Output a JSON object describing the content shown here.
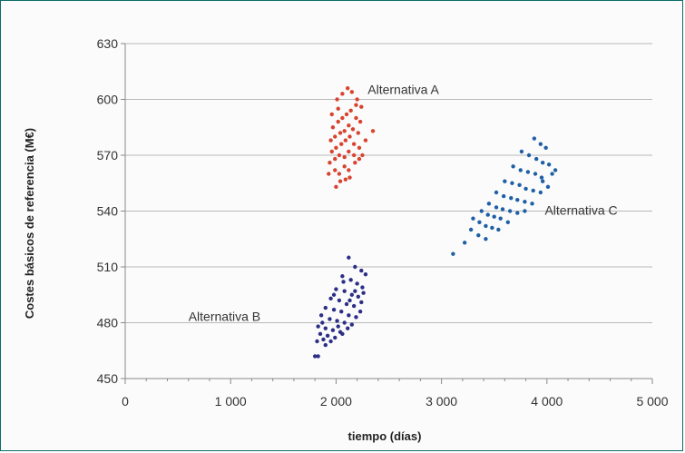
{
  "chart_data": {
    "type": "scatter",
    "title": "",
    "xlabel": "tiempo (días)",
    "ylabel": "Costes básicos de referencia (M€)",
    "xlim": [
      0,
      5000
    ],
    "ylim": [
      450,
      630
    ],
    "x_ticks": [
      "0",
      "1 000",
      "2 000",
      "3 000",
      "4 000",
      "5 000"
    ],
    "y_ticks": [
      "450",
      "480",
      "510",
      "540",
      "570",
      "600",
      "630"
    ],
    "grid": "horizontal",
    "legend": "none",
    "series": [
      {
        "name": "Alternativa A",
        "color": "#d9432f",
        "points": [
          [
            1960,
            592
          ],
          [
            2010,
            600
          ],
          [
            2060,
            603
          ],
          [
            2110,
            606
          ],
          [
            2150,
            604
          ],
          [
            2200,
            600
          ],
          [
            2240,
            596
          ],
          [
            1970,
            585
          ],
          [
            2020,
            588
          ],
          [
            2060,
            590
          ],
          [
            2100,
            592
          ],
          [
            2140,
            594
          ],
          [
            2190,
            590
          ],
          [
            2230,
            588
          ],
          [
            1950,
            578
          ],
          [
            1990,
            580
          ],
          [
            2040,
            582
          ],
          [
            2080,
            583
          ],
          [
            2120,
            586
          ],
          [
            2160,
            584
          ],
          [
            2210,
            582
          ],
          [
            1960,
            572
          ],
          [
            2000,
            574
          ],
          [
            2050,
            576
          ],
          [
            2090,
            578
          ],
          [
            2130,
            580
          ],
          [
            2170,
            576
          ],
          [
            2220,
            574
          ],
          [
            1940,
            566
          ],
          [
            1990,
            568
          ],
          [
            2030,
            570
          ],
          [
            2080,
            569
          ],
          [
            2120,
            572
          ],
          [
            2170,
            570
          ],
          [
            2220,
            568
          ],
          [
            1990,
            562
          ],
          [
            2030,
            560
          ],
          [
            2080,
            564
          ],
          [
            2120,
            562
          ],
          [
            2180,
            566
          ],
          [
            2040,
            556
          ],
          [
            2000,
            553
          ],
          [
            2130,
            558
          ],
          [
            2090,
            557
          ],
          [
            2350,
            583
          ],
          [
            2280,
            578
          ],
          [
            1930,
            560
          ],
          [
            2250,
            570
          ],
          [
            2190,
            597
          ],
          [
            2020,
            595
          ]
        ]
      },
      {
        "name": "Alternativa B",
        "color": "#2d2f87",
        "points": [
          [
            2120,
            515
          ],
          [
            2180,
            510
          ],
          [
            2240,
            508
          ],
          [
            2280,
            506
          ],
          [
            2060,
            505
          ],
          [
            2140,
            503
          ],
          [
            2200,
            501
          ],
          [
            2250,
            499
          ],
          [
            2000,
            498
          ],
          [
            2080,
            497
          ],
          [
            2150,
            495
          ],
          [
            2210,
            494
          ],
          [
            1950,
            493
          ],
          [
            2030,
            492
          ],
          [
            2100,
            490
          ],
          [
            2170,
            489
          ],
          [
            2240,
            491
          ],
          [
            1900,
            488
          ],
          [
            1980,
            487
          ],
          [
            2050,
            486
          ],
          [
            2120,
            484
          ],
          [
            2190,
            483
          ],
          [
            1860,
            484
          ],
          [
            1940,
            482
          ],
          [
            2010,
            481
          ],
          [
            2080,
            480
          ],
          [
            2150,
            479
          ],
          [
            1830,
            478
          ],
          [
            1900,
            477
          ],
          [
            1970,
            476
          ],
          [
            2040,
            475
          ],
          [
            2110,
            477
          ],
          [
            1850,
            474
          ],
          [
            1920,
            473
          ],
          [
            1990,
            472
          ],
          [
            2060,
            474
          ],
          [
            1880,
            471
          ],
          [
            1950,
            470
          ],
          [
            1820,
            470
          ],
          [
            1900,
            468
          ],
          [
            1800,
            462
          ],
          [
            1830,
            462
          ],
          [
            2260,
            496
          ],
          [
            2230,
            486
          ],
          [
            2070,
            502
          ],
          [
            1980,
            495
          ],
          [
            2130,
            492
          ],
          [
            1870,
            480
          ],
          [
            2020,
            478
          ],
          [
            2180,
            497
          ]
        ]
      },
      {
        "name": "Alternativa C",
        "color": "#1f5fa6",
        "points": [
          [
            3880,
            579
          ],
          [
            3940,
            576
          ],
          [
            3990,
            574
          ],
          [
            3760,
            572
          ],
          [
            3830,
            570
          ],
          [
            3900,
            568
          ],
          [
            3960,
            566
          ],
          [
            4020,
            565
          ],
          [
            3680,
            564
          ],
          [
            3750,
            562
          ],
          [
            3820,
            561
          ],
          [
            3890,
            560
          ],
          [
            3950,
            558
          ],
          [
            4050,
            560
          ],
          [
            3600,
            556
          ],
          [
            3670,
            555
          ],
          [
            3740,
            554
          ],
          [
            3800,
            552
          ],
          [
            3870,
            551
          ],
          [
            3940,
            550
          ],
          [
            4010,
            553
          ],
          [
            3520,
            550
          ],
          [
            3590,
            548
          ],
          [
            3660,
            547
          ],
          [
            3720,
            546
          ],
          [
            3790,
            545
          ],
          [
            3860,
            544
          ],
          [
            3450,
            544
          ],
          [
            3520,
            542
          ],
          [
            3580,
            541
          ],
          [
            3650,
            540
          ],
          [
            3720,
            539
          ],
          [
            3790,
            540
          ],
          [
            3380,
            540
          ],
          [
            3440,
            538
          ],
          [
            3500,
            537
          ],
          [
            3560,
            536
          ],
          [
            3630,
            534
          ],
          [
            3300,
            536
          ],
          [
            3360,
            534
          ],
          [
            3420,
            532
          ],
          [
            3480,
            531
          ],
          [
            3540,
            530
          ],
          [
            3280,
            530
          ],
          [
            3350,
            527
          ],
          [
            3420,
            525
          ],
          [
            3220,
            523
          ],
          [
            3110,
            517
          ],
          [
            3960,
            556
          ],
          [
            4080,
            562
          ]
        ]
      }
    ],
    "annotations": [
      {
        "text": "Alternativa A",
        "x": 2300,
        "y": 603
      },
      {
        "text": "Alternativa B",
        "x": 600,
        "y": 481
      },
      {
        "text": "Alternativa C",
        "x": 3980,
        "y": 538
      }
    ]
  }
}
